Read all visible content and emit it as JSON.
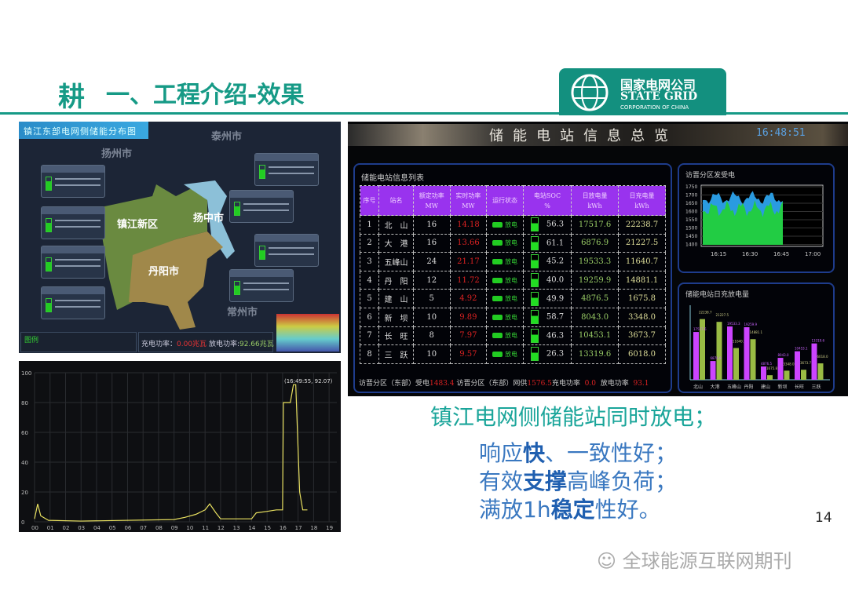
{
  "slide": {
    "title_icon": "耕",
    "title": "一、工程介绍-效果",
    "page_number": "14",
    "watermark": "全球能源互联网期刊"
  },
  "logo": {
    "cn": "国家电网公司",
    "en": "STATE GRID",
    "sub": "CORPORATION OF CHINA"
  },
  "map": {
    "title": "镇江东部电网侧储能分布图",
    "cities": [
      "扬州市",
      "泰州市",
      "常州市"
    ],
    "regions": [
      "镇江新区",
      "扬中市",
      "丹阳市"
    ],
    "legend_title": "图例",
    "charge_label": "充电功率：",
    "charge_value": "0.00兆瓦",
    "discharge_label": "放电功率:",
    "discharge_value": "92.66兆瓦"
  },
  "line_chart": {
    "y_ticks": [
      "0",
      "20",
      "40",
      "60",
      "80",
      "100"
    ],
    "x_ticks": [
      "00",
      "01",
      "02",
      "03",
      "04",
      "05",
      "06",
      "07",
      "08",
      "09",
      "10",
      "11",
      "12",
      "13",
      "14",
      "15",
      "16",
      "17",
      "18",
      "19"
    ],
    "annotation": "(16:49:55, 92.07)",
    "color": "#e8e060"
  },
  "dashboard": {
    "title": "储能电站信息总览",
    "clock": "16:48:51",
    "table_title": "储能电站信息列表",
    "headers": [
      [
        "序号",
        ""
      ],
      [
        "站名",
        ""
      ],
      [
        "额定功率",
        "MW"
      ],
      [
        "实时功率",
        "MW"
      ],
      [
        "运行状态",
        ""
      ],
      [
        "电站SOC",
        "%"
      ],
      [
        "日放电量",
        "kWh"
      ],
      [
        "日充电量",
        "kWh"
      ]
    ],
    "rows": [
      {
        "no": "1",
        "name": "北　山",
        "rated": "16",
        "real": "14.18",
        "status": "放电",
        "soc": "56.3",
        "dis": "17517.6",
        "chg": "22238.7"
      },
      {
        "no": "2",
        "name": "大　港",
        "rated": "16",
        "real": "13.66",
        "status": "放电",
        "soc": "61.1",
        "dis": "6876.9",
        "chg": "21227.5"
      },
      {
        "no": "3",
        "name": "五峰山",
        "rated": "24",
        "real": "21.17",
        "status": "放电",
        "soc": "45.2",
        "dis": "19533.3",
        "chg": "11640.7"
      },
      {
        "no": "4",
        "name": "丹　阳",
        "rated": "12",
        "real": "11.72",
        "status": "放电",
        "soc": "40.0",
        "dis": "19259.9",
        "chg": "14881.1"
      },
      {
        "no": "5",
        "name": "建　山",
        "rated": "5",
        "real": "4.92",
        "status": "放电",
        "soc": "49.9",
        "dis": "4876.5",
        "chg": "1675.8"
      },
      {
        "no": "6",
        "name": "新　坝",
        "rated": "10",
        "real": "9.89",
        "status": "放电",
        "soc": "58.7",
        "dis": "8043.0",
        "chg": "3348.0"
      },
      {
        "no": "7",
        "name": "长　旺",
        "rated": "8",
        "real": "7.97",
        "status": "放电",
        "soc": "46.3",
        "dis": "10453.1",
        "chg": "3673.7"
      },
      {
        "no": "8",
        "name": "三　跃",
        "rated": "10",
        "real": "9.57",
        "status": "放电",
        "soc": "26.3",
        "dis": "13319.6",
        "chg": "6018.0"
      }
    ],
    "footer": {
      "l1": "访晋分区（东部）受电",
      "v1": "1483.4",
      "l2": "访晋分区（东部）网供",
      "v2": "1576.5",
      "l3": "充电功率",
      "v3": "0.0",
      "l4": "放电功率",
      "v4": "93.1"
    },
    "area_title": "访晋分区发受电",
    "area_y_ticks": [
      "1750",
      "1700",
      "1650",
      "1600",
      "1550",
      "1500",
      "1450",
      "1400"
    ],
    "area_x_ticks": [
      "16:15",
      "16:30",
      "16:45",
      "17:00"
    ],
    "bar_title": "储能电站日充放电量",
    "bar_categories": [
      "北山",
      "大港",
      "五峰山",
      "丹阳",
      "建山",
      "新坝",
      "长旺",
      "三跃"
    ]
  },
  "slogan": {
    "line1": "镇江电网侧储能站同时放电；",
    "l2a": "响应",
    "l2b": "快",
    "l2c": "、一致性好；",
    "l3a": "有效",
    "l3b": "支撑",
    "l3c": "高峰负荷；",
    "l4a": "满放1h",
    "l4b": "稳定",
    "l4c": "性好。"
  }
}
